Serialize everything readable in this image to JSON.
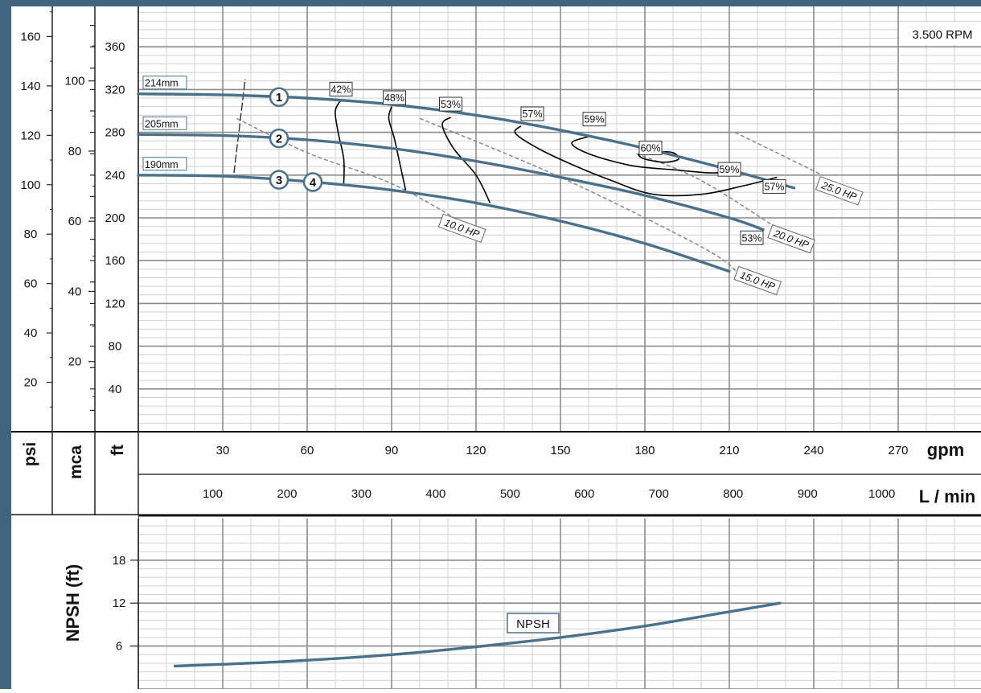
{
  "chart_data": [
    {
      "type": "line",
      "title": "3.500 RPM",
      "colors": {
        "frame": "#41657c",
        "curve": "#4a7189",
        "eff": "#000000",
        "power": "#888888",
        "grid_major": "#8c8c8c",
        "grid_minor": "#d0d0d0"
      },
      "axes": {
        "psi": {
          "label": "psi",
          "ticks": [
            20,
            40,
            60,
            80,
            100,
            120,
            140,
            160
          ]
        },
        "mca": {
          "label": "mca",
          "ticks": [
            20,
            40,
            60,
            80,
            100
          ]
        },
        "ft": {
          "label": "ft",
          "ticks": [
            40,
            80,
            120,
            160,
            200,
            240,
            280,
            320,
            360
          ]
        },
        "gpm": {
          "label": "gpm",
          "ticks": [
            30,
            60,
            90,
            120,
            150,
            180,
            210,
            240,
            270
          ]
        },
        "lmin": {
          "label": "L / min",
          "ticks": [
            100,
            200,
            300,
            400,
            500,
            600,
            700,
            800,
            900,
            1000
          ]
        },
        "xlim_gpm": [
          0,
          290
        ],
        "ylim_ft": [
          0,
          390
        ]
      },
      "series": [
        {
          "name": "214mm",
          "id": "3, 4",
          "points": [
            [
              0,
              316
            ],
            [
              30,
              315
            ],
            [
              60,
              312
            ],
            [
              90,
              306
            ],
            [
              120,
              296
            ],
            [
              150,
              282
            ],
            [
              180,
              265
            ],
            [
              210,
              245
            ],
            [
              233,
              228
            ]
          ]
        },
        {
          "name": "205mm",
          "id": "2",
          "points": [
            [
              0,
              278
            ],
            [
              30,
              277
            ],
            [
              60,
              273
            ],
            [
              90,
              265
            ],
            [
              120,
              253
            ],
            [
              150,
              238
            ],
            [
              180,
              221
            ],
            [
              210,
              200
            ],
            [
              222,
              189
            ]
          ]
        },
        {
          "name": "190mm",
          "id": "1",
          "points": [
            [
              0,
              240
            ],
            [
              30,
              239
            ],
            [
              60,
              234
            ],
            [
              90,
              226
            ],
            [
              120,
              214
            ],
            [
              150,
              197
            ],
            [
              180,
              176
            ],
            [
              210,
              150
            ]
          ]
        }
      ],
      "efficiency_labels": [
        {
          "text": "42%",
          "x": 72,
          "y": 320
        },
        {
          "text": "48%",
          "x": 91,
          "y": 312
        },
        {
          "text": "53%",
          "x": 111,
          "y": 306
        },
        {
          "text": "57%",
          "x": 140,
          "y": 297
        },
        {
          "text": "59%",
          "x": 162,
          "y": 292
        },
        {
          "text": "60%",
          "x": 182,
          "y": 265
        },
        {
          "text": "59%",
          "x": 210,
          "y": 245
        },
        {
          "text": "57%",
          "x": 226,
          "y": 229
        },
        {
          "text": "53%",
          "x": 218,
          "y": 181
        }
      ],
      "efficiency_curves": [
        {
          "points": [
            [
              72,
              310
            ],
            [
              70,
              300
            ],
            [
              71,
              280
            ],
            [
              73,
              255
            ],
            [
              73,
              232
            ]
          ]
        },
        {
          "points": [
            [
              90,
              304
            ],
            [
              89,
              293
            ],
            [
              91,
              274
            ],
            [
              93,
              250
            ],
            [
              95,
              226
            ]
          ]
        },
        {
          "points": [
            [
              111,
              294
            ],
            [
              108,
              287
            ],
            [
              112,
              265
            ],
            [
              120,
              240
            ],
            [
              125,
              214
            ]
          ]
        },
        {
          "points": [
            [
              136,
              286
            ],
            [
              134,
              279
            ],
            [
              142,
              265
            ],
            [
              154,
              250
            ],
            [
              168,
              235
            ],
            [
              183,
              222
            ],
            [
              200,
              222
            ],
            [
              215,
              230
            ],
            [
              227,
              238
            ]
          ]
        },
        {
          "points": [
            [
              160,
              276
            ],
            [
              154,
              270
            ],
            [
              160,
              260
            ],
            [
              175,
              249
            ],
            [
              190,
              245
            ],
            [
              204,
              242
            ],
            [
              210,
              244
            ]
          ]
        },
        {
          "points": [
            [
              185,
              262
            ],
            [
              178,
              260
            ],
            [
              180,
              255
            ],
            [
              187,
              252
            ],
            [
              192,
              255
            ],
            [
              190,
              261
            ],
            [
              185,
              262
            ]
          ]
        }
      ],
      "power_labels": [
        {
          "text": "10.0 HP",
          "x": 115,
          "y": 190
        },
        {
          "text": "15.0 HP",
          "x": 220,
          "y": 141
        },
        {
          "text": "20.0 HP",
          "x": 232,
          "y": 180
        },
        {
          "text": "25.0 HP",
          "x": 249,
          "y": 225
        }
      ],
      "power_curves": [
        {
          "points": [
            [
              35,
              293
            ],
            [
              60,
              261
            ],
            [
              90,
              232
            ],
            [
              115,
              196
            ]
          ]
        },
        {
          "points": [
            [
              100,
              293
            ],
            [
              150,
              238
            ],
            [
              200,
              173
            ],
            [
              213,
              149
            ]
          ]
        },
        {
          "points": [
            [
              177,
              260
            ],
            [
              200,
              235
            ],
            [
              230,
              185
            ]
          ]
        },
        {
          "points": [
            [
              212,
              280
            ],
            [
              226,
              262
            ],
            [
              243,
              240
            ]
          ]
        }
      ],
      "npshr_limit": {
        "points": [
          [
            34,
            242
          ],
          [
            38,
            330
          ]
        ]
      }
    },
    {
      "type": "line",
      "axes": {
        "npsh": {
          "label": "NPSH (ft)",
          "ticks": [
            6,
            12,
            18
          ]
        },
        "xlim_gpm": [
          0,
          290
        ],
        "ylim_ft": [
          0,
          24
        ]
      },
      "series": [
        {
          "name": "NPSH",
          "points": [
            [
              13,
              3.2
            ],
            [
              50,
              3.8
            ],
            [
              90,
              4.8
            ],
            [
              120,
              5.9
            ],
            [
              150,
              7.2
            ],
            [
              180,
              8.8
            ],
            [
              210,
              10.8
            ],
            [
              228,
              12
            ]
          ]
        }
      ]
    }
  ]
}
